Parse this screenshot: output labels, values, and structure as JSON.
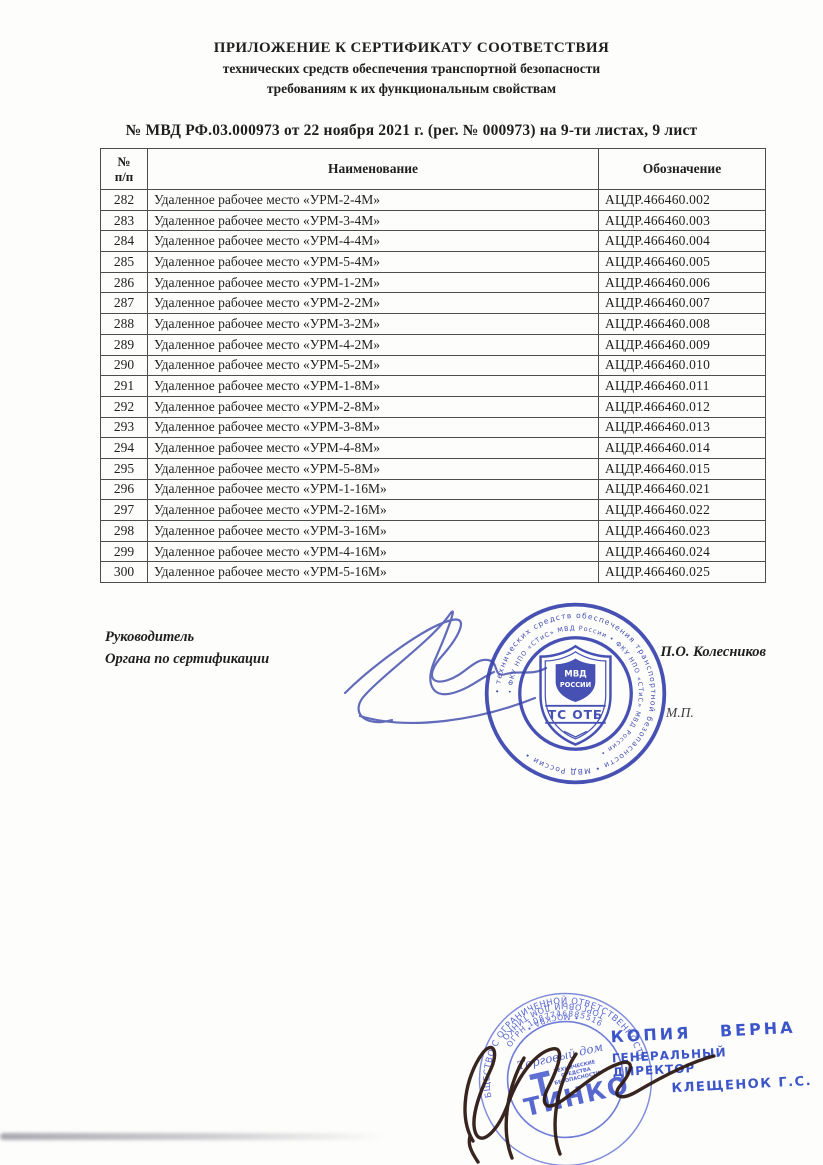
{
  "header": {
    "title_line1": "ПРИЛОЖЕНИЕ К СЕРТИФИКАТУ СООТВЕТСТВИЯ",
    "title_line2": "технических средств обеспечения транспортной безопасности",
    "title_line3": "требованиям к их функциональным свойствам",
    "reg_line": "№ МВД РФ.03.000973 от 22 ноября 2021 г. (рег. № 000973) на 9-ти листах, 9 лист"
  },
  "table": {
    "col1_line1": "№",
    "col1_line2": "п/п",
    "col2": "Наименование",
    "col3": "Обозначение",
    "rows": [
      {
        "num": "282",
        "name": "Удаленное рабочее место «УРМ-2-4М»",
        "code": "АЦДР.466460.002"
      },
      {
        "num": "283",
        "name": "Удаленное рабочее место «УРМ-3-4М»",
        "code": "АЦДР.466460.003"
      },
      {
        "num": "284",
        "name": "Удаленное рабочее место «УРМ-4-4М»",
        "code": "АЦДР.466460.004"
      },
      {
        "num": "285",
        "name": "Удаленное рабочее место «УРМ-5-4М»",
        "code": "АЦДР.466460.005"
      },
      {
        "num": "286",
        "name": "Удаленное рабочее место «УРМ-1-2М»",
        "code": "АЦДР.466460.006"
      },
      {
        "num": "287",
        "name": "Удаленное рабочее место «УРМ-2-2М»",
        "code": "АЦДР.466460.007"
      },
      {
        "num": "288",
        "name": "Удаленное рабочее место «УРМ-3-2М»",
        "code": "АЦДР.466460.008"
      },
      {
        "num": "289",
        "name": "Удаленное рабочее место «УРМ-4-2М»",
        "code": "АЦДР.466460.009"
      },
      {
        "num": "290",
        "name": "Удаленное рабочее место «УРМ-5-2М»",
        "code": "АЦДР.466460.010"
      },
      {
        "num": "291",
        "name": "Удаленное рабочее место «УРМ-1-8М»",
        "code": "АЦДР.466460.011"
      },
      {
        "num": "292",
        "name": "Удаленное рабочее место «УРМ-2-8М»",
        "code": "АЦДР.466460.012"
      },
      {
        "num": "293",
        "name": "Удаленное рабочее место «УРМ-3-8М»",
        "code": "АЦДР.466460.013"
      },
      {
        "num": "294",
        "name": "Удаленное рабочее место «УРМ-4-8М»",
        "code": "АЦДР.466460.014"
      },
      {
        "num": "295",
        "name": "Удаленное рабочее место «УРМ-5-8М»",
        "code": "АЦДР.466460.015"
      },
      {
        "num": "296",
        "name": "Удаленное рабочее место «УРМ-1-16М»",
        "code": "АЦДР.466460.021"
      },
      {
        "num": "297",
        "name": "Удаленное рабочее место «УРМ-2-16М»",
        "code": "АЦДР.466460.022"
      },
      {
        "num": "298",
        "name": "Удаленное рабочее место «УРМ-3-16М»",
        "code": "АЦДР.466460.023"
      },
      {
        "num": "299",
        "name": "Удаленное рабочее место «УРМ-4-16М»",
        "code": "АЦДР.466460.024"
      },
      {
        "num": "300",
        "name": "Удаленное рабочее место «УРМ-5-16М»",
        "code": "АЦДР.466460.025"
      }
    ]
  },
  "signature_block": {
    "role_line1": "Руководитель",
    "role_line2": "Органа по сертификации",
    "signer_name": "П.О. Колесников",
    "mp_label": "М.П."
  },
  "mvd_stamp": {
    "ring_text_outer": "• технических средств обеспечения транспортной безопасности • МВД России •",
    "ring_text_inner": "• ФКУ НПО «СТиС» МВД России • ФКУ НПО «СТиС» МВД России •",
    "shield_line1": "МВД",
    "shield_line2": "РОССИИ",
    "shield_band": "ТС ОТБ"
  },
  "tinko_stamp": {
    "ring_top": "ОБЩЕСТВО С ОГРАНИЧЕННОЙ ОТВЕТСТВЕННОСТЬЮ",
    "ring_bottom": "ТОРГОВЫЙ ДОМ ТИНКО",
    "ogrn": "ОГРН 1087746885516",
    "moskva": "• МОСКВА •",
    "center_script": "Торговый дом",
    "center_logo": "ТИНКО",
    "center_small1": "ТЕХНИЧЕСКИЕ",
    "center_small2": "СРЕДСТВА",
    "center_small3": "БЕЗОПАСНОСТИ"
  },
  "copy_stamp": {
    "line1": "КОПИЯ ВЕРНА",
    "line2": "ГЕНЕРАЛЬНЫЙ ДИРЕКТОР",
    "line3": "КЛЕЩЕНОК Г.С."
  },
  "colors": {
    "mvd_stamp_blue": "#3743ad",
    "tinko_stamp_blue": "#4657cc",
    "copy_stamp_blue": "#3c55c8",
    "ink_blue": "#4c57b2",
    "ink_dark": "#2e1a14",
    "text": "#1f1f1f"
  }
}
